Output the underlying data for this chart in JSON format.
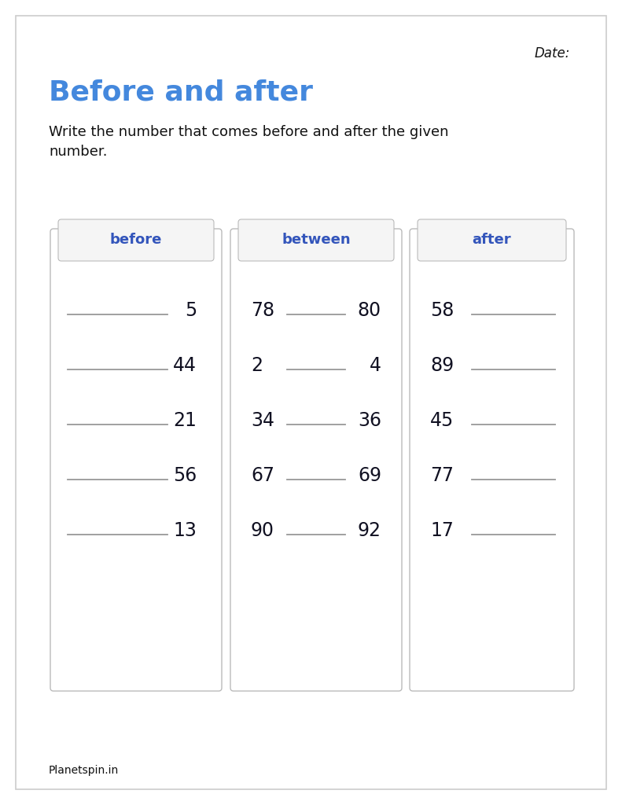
{
  "title": "Before and after",
  "title_color": "#4488dd",
  "date_label": "Date:",
  "instructions": "Write the number that comes before and after the given\nnumber.",
  "footer": "Planetspin.in",
  "columns": [
    "before",
    "between",
    "after"
  ],
  "before_numbers": [
    "5",
    "44",
    "21",
    "56",
    "13"
  ],
  "between_pairs": [
    [
      "78",
      "80"
    ],
    [
      "2",
      "4"
    ],
    [
      "34",
      "36"
    ],
    [
      "67",
      "69"
    ],
    [
      "90",
      "92"
    ]
  ],
  "after_numbers": [
    "58",
    "89",
    "45",
    "77",
    "17"
  ],
  "bg_color": "#ffffff",
  "box_border": "#bbbbbb",
  "header_bg": "#f5f5f5",
  "text_color": "#111111",
  "number_color": "#111122",
  "line_color": "#999999",
  "header_text_color": "#3355bb"
}
